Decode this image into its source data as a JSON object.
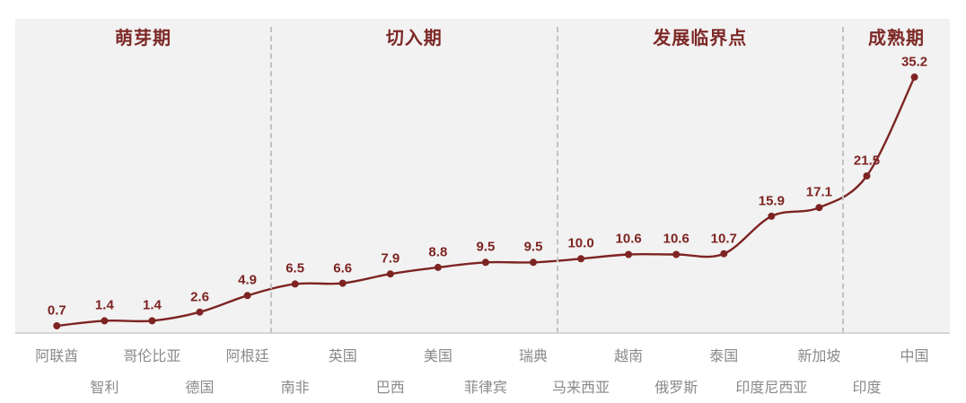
{
  "chart_data": {
    "type": "line",
    "title": "",
    "categories": [
      "阿联酋",
      "智利",
      "哥伦比亚",
      "德国",
      "阿根廷",
      "南非",
      "英国",
      "巴西",
      "美国",
      "菲律宾",
      "瑞典",
      "马来西亚",
      "越南",
      "俄罗斯",
      "泰国",
      "印度尼西亚",
      "新加坡",
      "印度",
      "中国"
    ],
    "values": [
      0.7,
      1.4,
      1.4,
      2.6,
      4.9,
      6.5,
      6.6,
      7.9,
      8.8,
      9.5,
      9.5,
      10.0,
      10.6,
      10.6,
      10.7,
      15.9,
      17.1,
      21.5,
      35.2
    ],
    "value_labels": [
      "0.7",
      "1.4",
      "1.4",
      "2.6",
      "4.9",
      "6.5",
      "6.6",
      "7.9",
      "8.8",
      "9.5",
      "9.5",
      "10.0",
      "10.6",
      "10.6",
      "10.7",
      "15.9",
      "17.1",
      "21.5",
      "35.2"
    ],
    "phases": [
      {
        "label": "萌芽期",
        "count": 5
      },
      {
        "label": "切入期",
        "count": 6
      },
      {
        "label": "发展临界点",
        "count": 6
      },
      {
        "label": "成熟期",
        "count": 2
      }
    ],
    "ylim": [
      0,
      38
    ],
    "grid": false,
    "legend": "none"
  },
  "colors": {
    "line": "#7D2422",
    "marker": "#7D2422",
    "value_label": "#7D2422",
    "phase_label": "#7D2927",
    "category_label": "#8A8A8A",
    "divider": "#C2C2C2",
    "plot_background": "#F2F2F2",
    "axis_line": "#D6D6D6",
    "page_background": "#FFFFFF"
  }
}
